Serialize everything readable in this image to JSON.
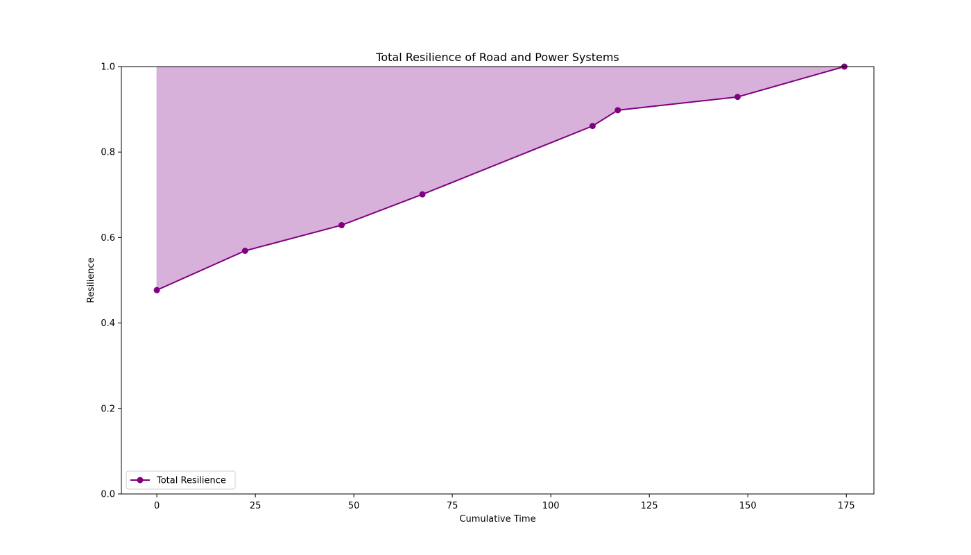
{
  "chart_data": {
    "type": "area",
    "title": "Total Resilience of Road and Power Systems",
    "xlabel": "Cumulative Time",
    "ylabel": "Resilience",
    "xlim": [
      -9,
      182
    ],
    "ylim": [
      0,
      1
    ],
    "xticks": [
      0,
      25,
      50,
      75,
      100,
      125,
      150,
      175
    ],
    "yticks": [
      0.0,
      0.2,
      0.4,
      0.6,
      0.8,
      1.0
    ],
    "xtick_labels": [
      "0",
      "25",
      "50",
      "75",
      "100",
      "125",
      "150",
      "175"
    ],
    "ytick_labels": [
      "0.0",
      "0.2",
      "0.4",
      "0.6",
      "0.8",
      "1.0"
    ],
    "grid": false,
    "fill_to": 1.0,
    "legend_position": "lower-left",
    "series": [
      {
        "name": "Total Resilience",
        "color": "#800080",
        "fill_color": "#d8b1db",
        "marker": "circle",
        "x": [
          0,
          22.4,
          46.9,
          67.4,
          110.6,
          117.0,
          147.4,
          174.5
        ],
        "y": [
          0.477,
          0.569,
          0.629,
          0.701,
          0.861,
          0.898,
          0.929,
          1.0
        ]
      }
    ]
  }
}
